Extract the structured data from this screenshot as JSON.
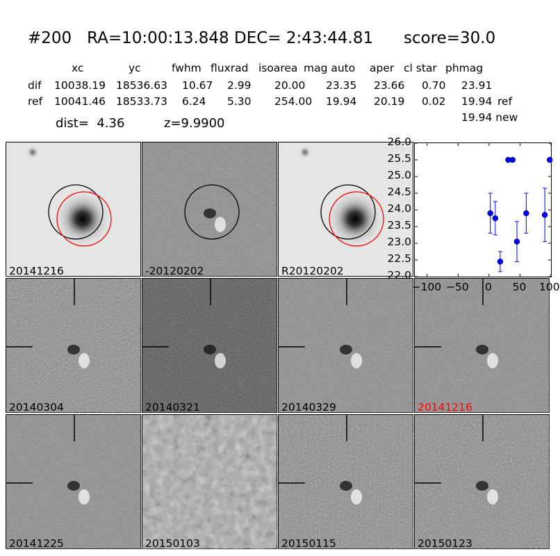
{
  "header": {
    "title": "#200   RA=10:00:13.848 DEC= 2:43:44.81      score=30.0",
    "columns": [
      "xc",
      "yc",
      "fwhm",
      "fluxrad",
      "isoarea",
      "mag auto",
      "aper",
      "cl star",
      "phmag"
    ],
    "rows": [
      {
        "label": "dif",
        "values": [
          "10038.19",
          "18536.63",
          "10.67",
          "2.99",
          "20.00",
          "23.35",
          "23.66",
          "0.70",
          "23.91"
        ],
        "suffix": ""
      },
      {
        "label": "ref",
        "values": [
          "10041.46",
          "18533.73",
          "6.24",
          "5.30",
          "254.00",
          "19.94",
          "20.19",
          "0.02",
          "19.94"
        ],
        "suffix": "ref"
      }
    ],
    "extra_line": "19.94 new",
    "dist_label": "dist=  4.36",
    "z_label": "z=9.9900"
  },
  "panels": [
    {
      "label": "20141216",
      "style": "ref",
      "circles": [
        "black",
        "red"
      ]
    },
    {
      "label": "-20120202",
      "style": "diff",
      "circles": [
        "black"
      ]
    },
    {
      "label": "R20120202",
      "style": "ref",
      "circles": [
        "black",
        "red"
      ]
    },
    {
      "label": "20140304",
      "style": "noisy",
      "crosshair": true
    },
    {
      "label": "20140321",
      "style": "dark",
      "crosshair": true
    },
    {
      "label": "20140329",
      "style": "diff",
      "crosshair": true
    },
    {
      "label": "20141216",
      "style": "diff",
      "crosshair": true,
      "label_color": "#ff0000"
    },
    {
      "label": "20141225",
      "style": "diff",
      "crosshair": true
    },
    {
      "label": "20150103",
      "style": "blotchy",
      "crosshair": false
    },
    {
      "label": "20150115",
      "style": "noisy",
      "crosshair": true
    },
    {
      "label": "20150123",
      "style": "noisy",
      "crosshair": true
    }
  ],
  "chart_data": {
    "type": "scatter",
    "title": "",
    "xlabel": "",
    "ylabel": "",
    "xlim": [
      -120,
      100
    ],
    "ylim": [
      26.0,
      22.0
    ],
    "y_inverted": true,
    "x_ticks": [
      "−100",
      "−50",
      "0",
      "50",
      "100"
    ],
    "y_ticks": [
      "22.0",
      "22.5",
      "23.0",
      "23.5",
      "24.0",
      "24.5",
      "25.0",
      "25.5",
      "26.0"
    ],
    "color": "#0000ff",
    "points": [
      {
        "x": 2,
        "y": 23.9,
        "err": 0.6
      },
      {
        "x": 10,
        "y": 23.75,
        "err": 0.5
      },
      {
        "x": 18,
        "y": 22.45,
        "err": 0.3
      },
      {
        "x": 31,
        "y": 25.5,
        "err": 0.05
      },
      {
        "x": 38,
        "y": 25.5,
        "err": 0.05
      },
      {
        "x": 45,
        "y": 23.05,
        "err": 0.6
      },
      {
        "x": 60,
        "y": 23.9,
        "err": 0.6
      },
      {
        "x": 90,
        "y": 23.85,
        "err": 0.8
      },
      {
        "x": 98,
        "y": 25.5,
        "err": 0.05
      }
    ]
  }
}
